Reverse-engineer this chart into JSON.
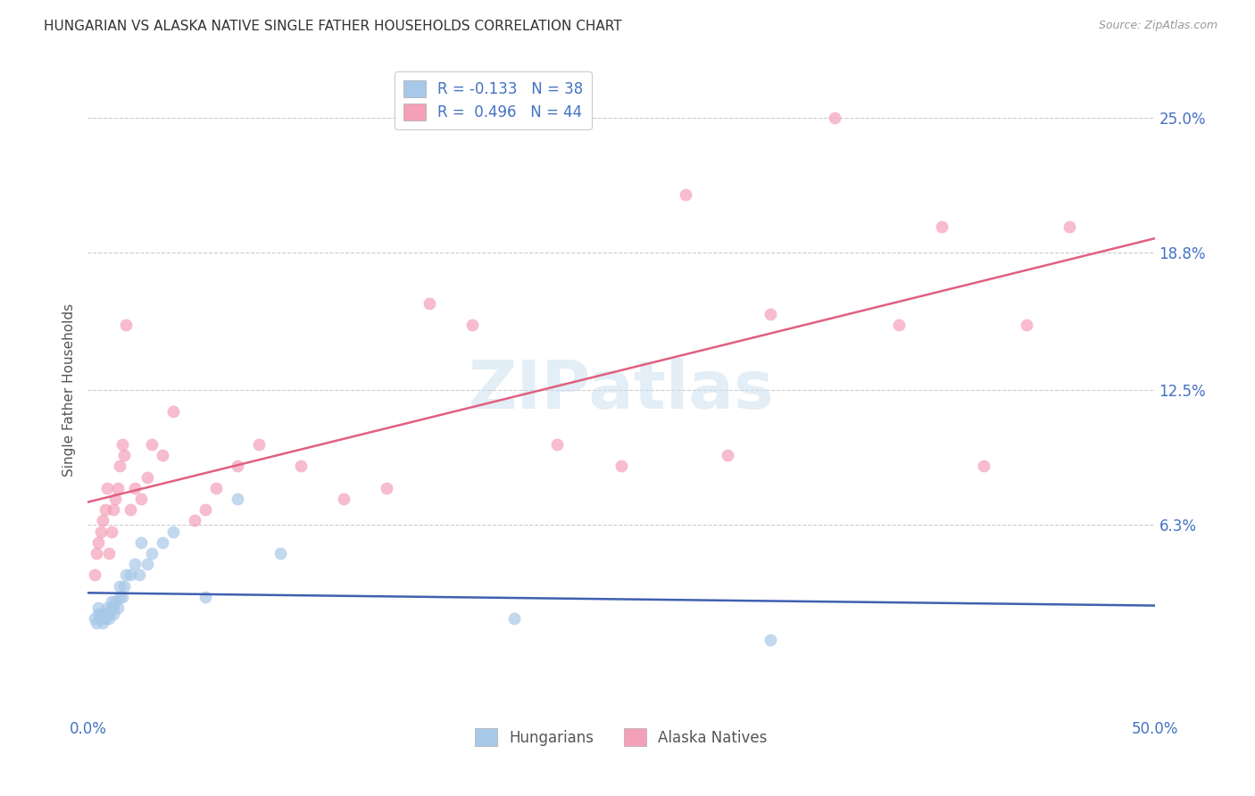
{
  "title": "HUNGARIAN VS ALASKA NATIVE SINGLE FATHER HOUSEHOLDS CORRELATION CHART",
  "source": "Source: ZipAtlas.com",
  "ylabel": "Single Father Households",
  "ytick_labels": [
    "25.0%",
    "18.8%",
    "12.5%",
    "6.3%"
  ],
  "ytick_values": [
    0.25,
    0.188,
    0.125,
    0.063
  ],
  "xlim": [
    0.0,
    0.5
  ],
  "ylim": [
    -0.025,
    0.275
  ],
  "hungarian_color": "#a8c8e8",
  "alaska_color": "#f4a0b8",
  "hungarian_line_color": "#4060b0",
  "alaska_line_color": "#e06080",
  "watermark": "ZIPatlas",
  "background_color": "#ffffff",
  "grid_color": "#cccccc",
  "hungarian_x": [
    0.003,
    0.004,
    0.005,
    0.005,
    0.006,
    0.006,
    0.007,
    0.007,
    0.008,
    0.008,
    0.009,
    0.009,
    0.01,
    0.01,
    0.011,
    0.011,
    0.012,
    0.012,
    0.013,
    0.014,
    0.015,
    0.015,
    0.016,
    0.017,
    0.018,
    0.02,
    0.022,
    0.024,
    0.025,
    0.028,
    0.03,
    0.035,
    0.04,
    0.055,
    0.07,
    0.09,
    0.2,
    0.32
  ],
  "hungarian_y": [
    0.02,
    0.018,
    0.022,
    0.025,
    0.02,
    0.022,
    0.018,
    0.02,
    0.02,
    0.022,
    0.025,
    0.022,
    0.02,
    0.022,
    0.025,
    0.028,
    0.022,
    0.025,
    0.028,
    0.025,
    0.03,
    0.035,
    0.03,
    0.035,
    0.04,
    0.04,
    0.045,
    0.04,
    0.055,
    0.045,
    0.05,
    0.055,
    0.06,
    0.03,
    0.075,
    0.05,
    0.02,
    0.01
  ],
  "alaska_x": [
    0.003,
    0.004,
    0.005,
    0.006,
    0.007,
    0.008,
    0.009,
    0.01,
    0.011,
    0.012,
    0.013,
    0.014,
    0.015,
    0.016,
    0.017,
    0.018,
    0.02,
    0.022,
    0.025,
    0.028,
    0.03,
    0.035,
    0.04,
    0.05,
    0.055,
    0.06,
    0.07,
    0.08,
    0.1,
    0.12,
    0.14,
    0.16,
    0.18,
    0.22,
    0.25,
    0.28,
    0.3,
    0.32,
    0.35,
    0.38,
    0.4,
    0.42,
    0.44,
    0.46
  ],
  "alaska_y": [
    0.04,
    0.05,
    0.055,
    0.06,
    0.065,
    0.07,
    0.08,
    0.05,
    0.06,
    0.07,
    0.075,
    0.08,
    0.09,
    0.1,
    0.095,
    0.155,
    0.07,
    0.08,
    0.075,
    0.085,
    0.1,
    0.095,
    0.115,
    0.065,
    0.07,
    0.08,
    0.09,
    0.1,
    0.09,
    0.075,
    0.08,
    0.165,
    0.155,
    0.1,
    0.09,
    0.215,
    0.095,
    0.16,
    0.25,
    0.155,
    0.2,
    0.09,
    0.155,
    0.2
  ],
  "legend1_label1": "R = -0.133",
  "legend1_n1": "N = 38",
  "legend1_label2": "R =  0.496",
  "legend1_n2": "N = 44",
  "legend2_label1": "Hungarians",
  "legend2_label2": "Alaska Natives"
}
